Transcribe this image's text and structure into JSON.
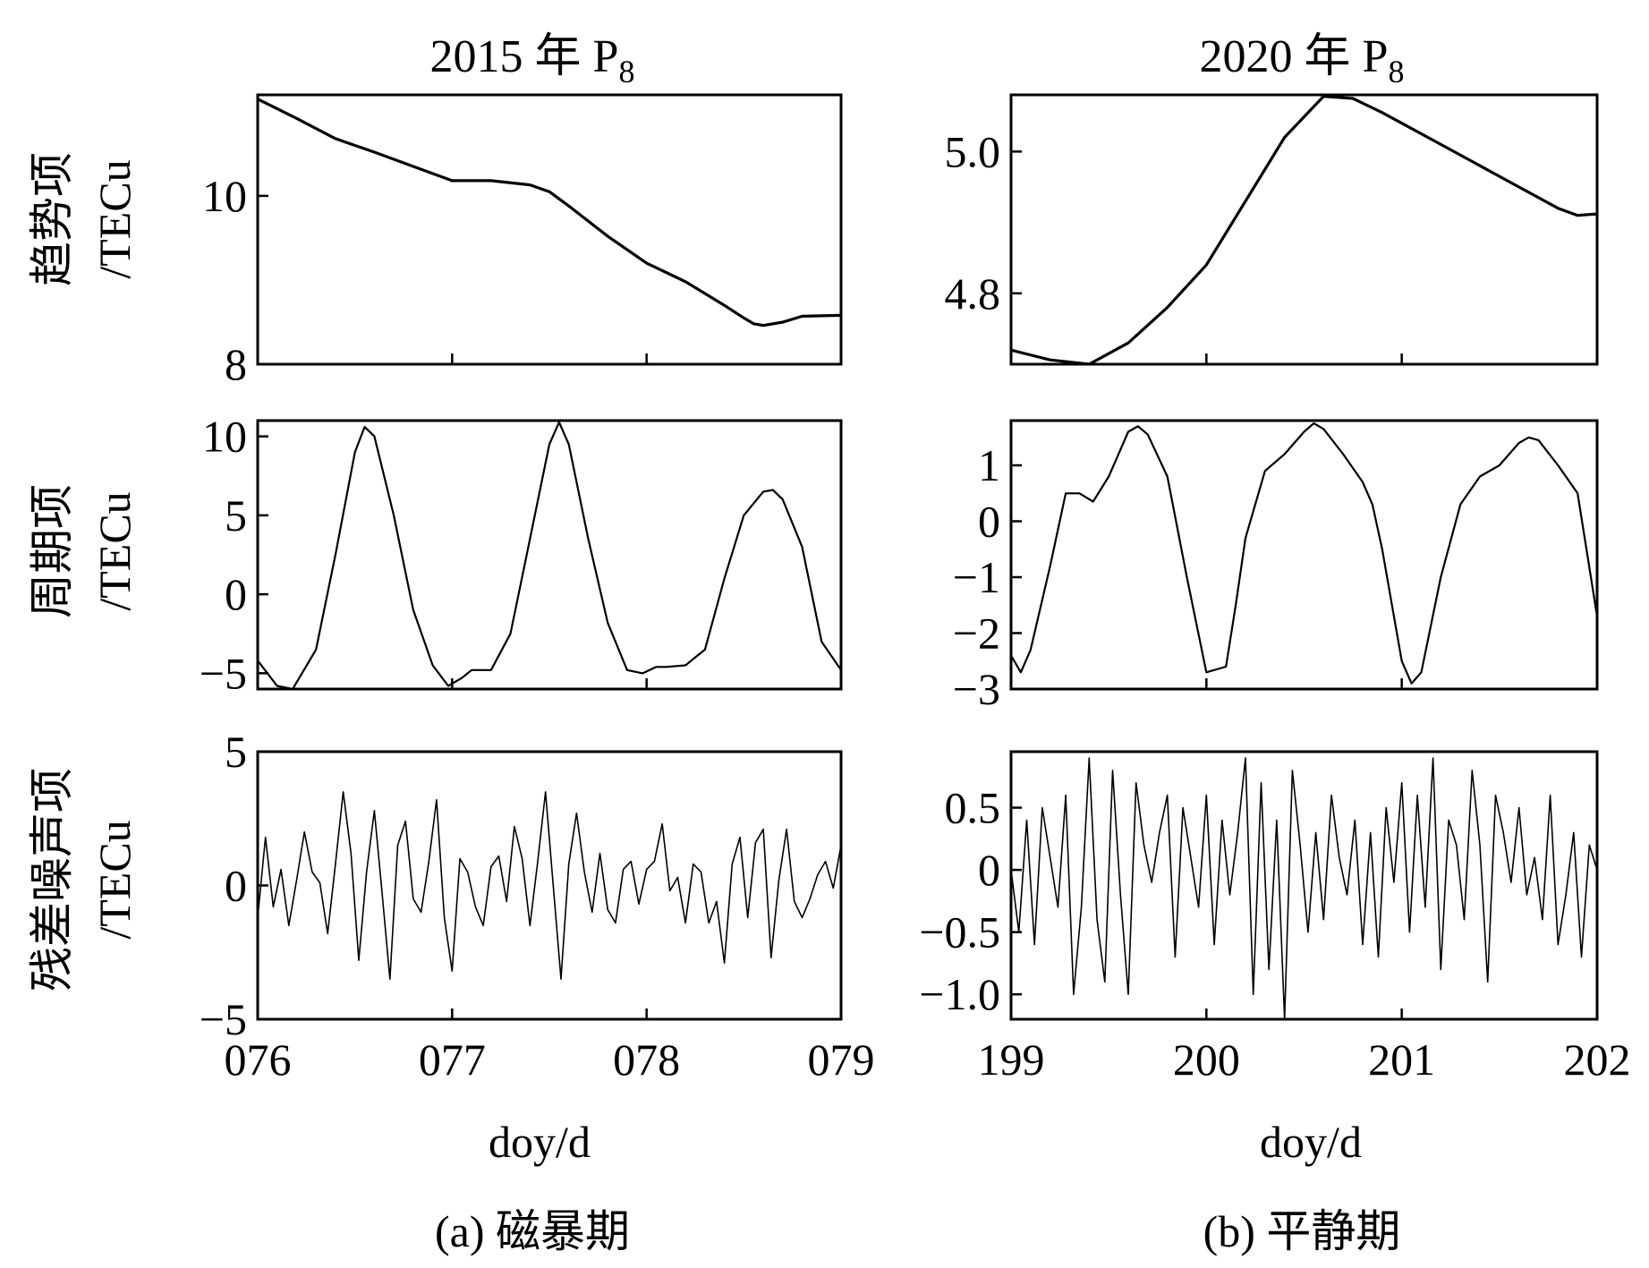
{
  "columns": [
    {
      "title": "2015 年 P",
      "title_sub": "8",
      "xlabel": "doy/d",
      "caption": "(a) 磁暴期"
    },
    {
      "title": "2020 年 P",
      "title_sub": "8",
      "xlabel": "doy/d",
      "caption": "(b) 平静期"
    }
  ],
  "rows": [
    {
      "label_cn": "趋势项",
      "label_unit": "/TECu"
    },
    {
      "label_cn": "周期项",
      "label_unit": "/TECu"
    },
    {
      "label_cn": "残差噪声项",
      "label_unit": "/TECu"
    }
  ],
  "chart_data": [
    {
      "type": "line",
      "id": "a-trend",
      "col": 0,
      "row": 0,
      "xlim": [
        76,
        79
      ],
      "ylim": [
        8,
        11.2
      ],
      "xticks": [
        77,
        78
      ],
      "xticklabels": [],
      "yticks": [
        8,
        10
      ],
      "yticklabels": [
        "8",
        "10"
      ],
      "x": [
        76.0,
        76.2,
        76.4,
        76.6,
        76.8,
        77.0,
        77.2,
        77.4,
        77.5,
        77.6,
        77.8,
        78.0,
        78.2,
        78.4,
        78.5,
        78.55,
        78.6,
        78.7,
        78.8,
        79.0
      ],
      "y": [
        11.15,
        10.92,
        10.68,
        10.52,
        10.35,
        10.18,
        10.18,
        10.13,
        10.05,
        9.88,
        9.52,
        9.2,
        8.98,
        8.7,
        8.55,
        8.48,
        8.46,
        8.5,
        8.57,
        8.58
      ]
    },
    {
      "type": "line",
      "id": "b-trend",
      "col": 1,
      "row": 0,
      "xlim": [
        199,
        202
      ],
      "ylim": [
        4.7,
        5.08
      ],
      "xticks": [
        200,
        201
      ],
      "xticklabels": [],
      "yticks": [
        4.8,
        5.0
      ],
      "yticklabels": [
        "4.8",
        "5.0"
      ],
      "x": [
        199.0,
        199.2,
        199.4,
        199.6,
        199.8,
        200.0,
        200.2,
        200.4,
        200.6,
        200.75,
        200.9,
        201.0,
        201.2,
        201.4,
        201.6,
        201.8,
        201.9,
        202.0
      ],
      "y": [
        4.72,
        4.706,
        4.7,
        4.73,
        4.78,
        4.84,
        4.93,
        5.02,
        5.078,
        5.075,
        5.055,
        5.04,
        5.01,
        4.98,
        4.95,
        4.92,
        4.91,
        4.912
      ]
    },
    {
      "type": "line",
      "id": "a-periodic",
      "col": 0,
      "row": 1,
      "xlim": [
        76,
        79
      ],
      "ylim": [
        -6,
        11
      ],
      "xticks": [
        77,
        78
      ],
      "xticklabels": [],
      "yticks": [
        -5,
        0,
        5,
        10
      ],
      "yticklabels": [
        "−5",
        "0",
        "5",
        "10"
      ],
      "x": [
        76.0,
        76.1,
        76.18,
        76.3,
        76.4,
        76.5,
        76.55,
        76.6,
        76.7,
        76.8,
        76.9,
        76.98,
        77.05,
        77.1,
        77.2,
        77.3,
        77.4,
        77.5,
        77.55,
        77.6,
        77.7,
        77.8,
        77.9,
        77.98,
        78.05,
        78.1,
        78.2,
        78.3,
        78.4,
        78.5,
        78.6,
        78.65,
        78.7,
        78.8,
        78.9,
        79.0
      ],
      "y": [
        -4.2,
        -5.8,
        -6.0,
        -3.5,
        2.5,
        9.0,
        10.6,
        10.0,
        5.0,
        -1.0,
        -4.5,
        -5.8,
        -5.3,
        -4.8,
        -4.8,
        -2.5,
        3.5,
        9.5,
        10.9,
        9.5,
        3.5,
        -1.8,
        -4.8,
        -5.0,
        -4.6,
        -4.6,
        -4.5,
        -3.5,
        1.0,
        5.0,
        6.5,
        6.6,
        6.0,
        3.0,
        -3.0,
        -4.8
      ]
    },
    {
      "type": "line",
      "id": "b-periodic",
      "col": 1,
      "row": 1,
      "xlim": [
        199,
        202
      ],
      "ylim": [
        -3,
        1.8
      ],
      "xticks": [
        200,
        201
      ],
      "xticklabels": [],
      "yticks": [
        -3,
        -2,
        -1,
        0,
        1
      ],
      "yticklabels": [
        "−3",
        "−2",
        "−1",
        "0",
        "1"
      ],
      "x": [
        199.0,
        199.05,
        199.1,
        199.2,
        199.28,
        199.35,
        199.42,
        199.5,
        199.6,
        199.65,
        199.7,
        199.8,
        199.9,
        200.0,
        200.1,
        200.15,
        200.2,
        200.3,
        200.4,
        200.5,
        200.55,
        200.6,
        200.7,
        200.8,
        200.85,
        200.9,
        201.0,
        201.05,
        201.1,
        201.2,
        201.3,
        201.4,
        201.5,
        201.6,
        201.65,
        201.7,
        201.8,
        201.9,
        202.0
      ],
      "y": [
        -2.4,
        -2.7,
        -2.3,
        -0.8,
        0.5,
        0.5,
        0.35,
        0.8,
        1.6,
        1.7,
        1.55,
        0.8,
        -1.0,
        -2.7,
        -2.6,
        -1.5,
        -0.3,
        0.9,
        1.2,
        1.6,
        1.75,
        1.65,
        1.2,
        0.7,
        0.3,
        -0.5,
        -2.5,
        -2.9,
        -2.7,
        -1.0,
        0.3,
        0.8,
        1.0,
        1.4,
        1.5,
        1.45,
        1.0,
        0.5,
        -1.7
      ]
    },
    {
      "type": "line",
      "id": "a-residual",
      "col": 0,
      "row": 2,
      "xlim": [
        76,
        79
      ],
      "ylim": [
        -5,
        5
      ],
      "xticks": [
        77,
        78
      ],
      "xticklabels": [
        "076",
        "077",
        "078",
        "079"
      ],
      "xtick_all": [
        76,
        77,
        78,
        79
      ],
      "yticks": [
        -5,
        0,
        5
      ],
      "yticklabels": [
        "−5",
        "0",
        "5"
      ],
      "x": [
        76.0,
        76.04,
        76.08,
        76.12,
        76.16,
        76.2,
        76.24,
        76.28,
        76.32,
        76.36,
        76.4,
        76.44,
        76.48,
        76.52,
        76.56,
        76.6,
        76.64,
        76.68,
        76.72,
        76.76,
        76.8,
        76.84,
        76.88,
        76.92,
        76.96,
        77.0,
        77.04,
        77.08,
        77.12,
        77.16,
        77.2,
        77.24,
        77.28,
        77.32,
        77.36,
        77.4,
        77.44,
        77.48,
        77.52,
        77.56,
        77.6,
        77.64,
        77.68,
        77.72,
        77.76,
        77.8,
        77.84,
        77.88,
        77.92,
        77.96,
        78.0,
        78.04,
        78.08,
        78.12,
        78.16,
        78.2,
        78.24,
        78.28,
        78.32,
        78.36,
        78.4,
        78.44,
        78.48,
        78.52,
        78.56,
        78.6,
        78.64,
        78.68,
        78.72,
        78.76,
        78.8,
        78.84,
        78.88,
        78.92,
        78.96,
        79.0
      ],
      "y": [
        -1.2,
        1.8,
        -0.8,
        0.6,
        -1.5,
        0.2,
        2.0,
        0.5,
        0.1,
        -1.8,
        0.8,
        3.5,
        1.2,
        -2.8,
        0.5,
        2.8,
        -0.3,
        -3.5,
        1.5,
        2.4,
        -0.5,
        -1.0,
        0.9,
        3.2,
        -1.2,
        -3.2,
        1.0,
        0.5,
        -0.8,
        -1.5,
        0.7,
        1.1,
        -0.6,
        2.2,
        1.0,
        -1.5,
        0.9,
        3.5,
        0.0,
        -3.5,
        0.8,
        2.7,
        0.5,
        -1.0,
        1.2,
        -0.9,
        -1.4,
        0.6,
        0.9,
        -0.7,
        0.6,
        0.9,
        2.3,
        -0.2,
        0.3,
        -1.4,
        0.8,
        0.5,
        -1.4,
        -0.6,
        -2.9,
        0.8,
        1.8,
        -1.2,
        1.6,
        2.1,
        -2.7,
        0.2,
        2.1,
        -0.6,
        -1.2,
        -0.5,
        0.4,
        0.9,
        -0.1,
        1.5
      ]
    },
    {
      "type": "line",
      "id": "b-residual",
      "col": 1,
      "row": 2,
      "xlim": [
        199,
        202
      ],
      "ylim": [
        -1.2,
        0.95
      ],
      "xticks": [
        200,
        201
      ],
      "xticklabels": [
        "199",
        "200",
        "201",
        "202"
      ],
      "xtick_all": [
        199,
        200,
        201,
        202
      ],
      "yticks": [
        -1.0,
        -0.5,
        0,
        0.5
      ],
      "yticklabels": [
        "−1.0",
        "−0.5",
        "0",
        "0.5"
      ],
      "x": [
        199.0,
        199.04,
        199.08,
        199.12,
        199.16,
        199.2,
        199.24,
        199.28,
        199.32,
        199.36,
        199.4,
        199.44,
        199.48,
        199.52,
        199.56,
        199.6,
        199.64,
        199.68,
        199.72,
        199.76,
        199.8,
        199.84,
        199.88,
        199.92,
        199.96,
        200.0,
        200.04,
        200.08,
        200.12,
        200.16,
        200.2,
        200.24,
        200.28,
        200.32,
        200.36,
        200.4,
        200.44,
        200.48,
        200.52,
        200.56,
        200.6,
        200.64,
        200.68,
        200.72,
        200.76,
        200.8,
        200.84,
        200.88,
        200.92,
        200.96,
        201.0,
        201.04,
        201.08,
        201.12,
        201.16,
        201.2,
        201.24,
        201.28,
        201.32,
        201.36,
        201.4,
        201.44,
        201.48,
        201.52,
        201.56,
        201.6,
        201.64,
        201.68,
        201.72,
        201.76,
        201.8,
        201.84,
        201.88,
        201.92,
        201.96,
        202.0
      ],
      "y": [
        0.0,
        -0.5,
        0.4,
        -0.6,
        0.5,
        0.1,
        -0.3,
        0.6,
        -1.0,
        -0.3,
        0.9,
        -0.4,
        -0.9,
        0.8,
        -0.2,
        -1.0,
        0.7,
        0.2,
        -0.1,
        0.3,
        0.6,
        -0.7,
        0.5,
        0.1,
        -0.3,
        0.6,
        -0.6,
        0.4,
        -0.2,
        0.3,
        0.9,
        -1.0,
        0.7,
        -0.8,
        0.4,
        -1.2,
        0.8,
        0.2,
        -0.5,
        0.3,
        -0.4,
        0.6,
        0.1,
        -0.2,
        0.4,
        -0.6,
        0.3,
        -0.7,
        0.5,
        -0.1,
        0.7,
        -0.5,
        0.6,
        -0.3,
        0.9,
        -0.8,
        0.4,
        0.2,
        -0.4,
        0.8,
        0.2,
        -0.9,
        0.6,
        0.3,
        -0.1,
        0.5,
        -0.2,
        0.1,
        -0.4,
        0.6,
        -0.6,
        -0.2,
        0.3,
        -0.7,
        0.2,
        0.0
      ]
    }
  ]
}
